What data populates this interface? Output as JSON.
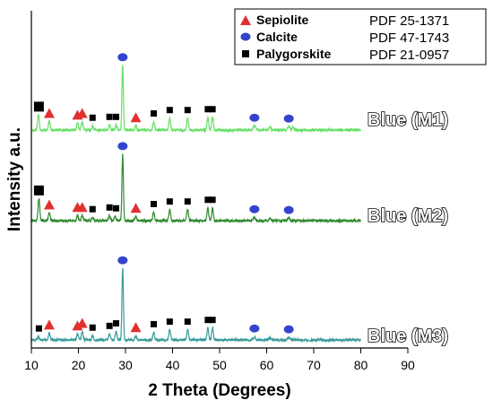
{
  "chart_data": {
    "type": "line",
    "xlabel": "2 Theta (Degrees)",
    "ylabel": "Intensity a.u.",
    "xlim": [
      10,
      90
    ],
    "x_ticks": [
      10,
      20,
      30,
      40,
      50,
      60,
      70,
      80,
      90
    ],
    "x_data_range": [
      10,
      80
    ],
    "series": [
      {
        "name": "Blue (M1)",
        "color": "#66e066",
        "peaks": [
          {
            "x": 11.5,
            "h": 0.18,
            "w": 0.25
          },
          {
            "x": 13.8,
            "h": 0.1,
            "w": 0.25
          },
          {
            "x": 19.8,
            "h": 0.08,
            "w": 0.25
          },
          {
            "x": 20.8,
            "h": 0.1,
            "w": 0.25
          },
          {
            "x": 23.0,
            "h": 0.05,
            "w": 0.25
          },
          {
            "x": 26.6,
            "h": 0.06,
            "w": 0.25
          },
          {
            "x": 28.0,
            "h": 0.06,
            "w": 0.25
          },
          {
            "x": 29.4,
            "h": 0.76,
            "w": 0.22
          },
          {
            "x": 32.2,
            "h": 0.05,
            "w": 0.25
          },
          {
            "x": 36.0,
            "h": 0.1,
            "w": 0.25
          },
          {
            "x": 39.4,
            "h": 0.14,
            "w": 0.25
          },
          {
            "x": 43.2,
            "h": 0.14,
            "w": 0.25
          },
          {
            "x": 47.5,
            "h": 0.15,
            "w": 0.25
          },
          {
            "x": 48.5,
            "h": 0.15,
            "w": 0.25
          },
          {
            "x": 57.4,
            "h": 0.05,
            "w": 0.3
          },
          {
            "x": 60.7,
            "h": 0.04,
            "w": 0.3
          },
          {
            "x": 64.7,
            "h": 0.04,
            "w": 0.3
          },
          {
            "x": 65.6,
            "h": 0.03,
            "w": 0.3
          }
        ]
      },
      {
        "name": "Blue (M2)",
        "color": "#2e8a2e",
        "peaks": [
          {
            "x": 11.6,
            "h": 0.26,
            "w": 0.25
          },
          {
            "x": 13.8,
            "h": 0.09,
            "w": 0.25
          },
          {
            "x": 19.8,
            "h": 0.06,
            "w": 0.25
          },
          {
            "x": 20.8,
            "h": 0.06,
            "w": 0.25
          },
          {
            "x": 23.0,
            "h": 0.04,
            "w": 0.25
          },
          {
            "x": 26.6,
            "h": 0.06,
            "w": 0.25
          },
          {
            "x": 27.8,
            "h": 0.05,
            "w": 0.25
          },
          {
            "x": 29.4,
            "h": 0.78,
            "w": 0.22
          },
          {
            "x": 32.2,
            "h": 0.05,
            "w": 0.25
          },
          {
            "x": 36.0,
            "h": 0.1,
            "w": 0.25
          },
          {
            "x": 39.4,
            "h": 0.13,
            "w": 0.25
          },
          {
            "x": 43.2,
            "h": 0.13,
            "w": 0.25
          },
          {
            "x": 47.5,
            "h": 0.15,
            "w": 0.25
          },
          {
            "x": 48.5,
            "h": 0.15,
            "w": 0.25
          },
          {
            "x": 57.4,
            "h": 0.04,
            "w": 0.3
          },
          {
            "x": 60.7,
            "h": 0.03,
            "w": 0.3
          },
          {
            "x": 64.7,
            "h": 0.03,
            "w": 0.3
          }
        ]
      },
      {
        "name": "Blue (M3)",
        "color": "#3a9a9a",
        "peaks": [
          {
            "x": 11.5,
            "h": 0.04,
            "w": 0.25
          },
          {
            "x": 13.8,
            "h": 0.08,
            "w": 0.25
          },
          {
            "x": 19.8,
            "h": 0.07,
            "w": 0.25
          },
          {
            "x": 20.8,
            "h": 0.1,
            "w": 0.25
          },
          {
            "x": 23.0,
            "h": 0.05,
            "w": 0.25
          },
          {
            "x": 26.6,
            "h": 0.07,
            "w": 0.25
          },
          {
            "x": 28.0,
            "h": 0.1,
            "w": 0.25
          },
          {
            "x": 29.4,
            "h": 0.84,
            "w": 0.22
          },
          {
            "x": 32.2,
            "h": 0.05,
            "w": 0.25
          },
          {
            "x": 36.0,
            "h": 0.09,
            "w": 0.25
          },
          {
            "x": 39.4,
            "h": 0.12,
            "w": 0.25
          },
          {
            "x": 43.2,
            "h": 0.12,
            "w": 0.25
          },
          {
            "x": 47.5,
            "h": 0.14,
            "w": 0.25
          },
          {
            "x": 48.5,
            "h": 0.14,
            "w": 0.25
          },
          {
            "x": 57.4,
            "h": 0.04,
            "w": 0.3
          },
          {
            "x": 60.7,
            "h": 0.03,
            "w": 0.3
          },
          {
            "x": 64.7,
            "h": 0.03,
            "w": 0.3
          }
        ]
      }
    ],
    "legend": {
      "placement": "top-right",
      "entries": [
        {
          "name": "Sepiolite",
          "pdf": "PDF 25-1371",
          "marker": "triangle",
          "color": "#e03030"
        },
        {
          "name": "Calcite",
          "pdf": "PDF 47-1743",
          "marker": "circle",
          "color": "#3344cc"
        },
        {
          "name": "Palygorskite",
          "pdf": "PDF 21-0957",
          "marker": "square",
          "color": "#000000"
        }
      ]
    },
    "phase_markers": {
      "Sepiolite": [
        13.8,
        19.8,
        20.8,
        32.2
      ],
      "Calcite": [
        29.4,
        57.4,
        64.7
      ],
      "Palygorskite": [
        11.6,
        23.0,
        26.6,
        28.0,
        36.0,
        39.4,
        43.2,
        47.5,
        48.5
      ]
    },
    "grid": false
  }
}
